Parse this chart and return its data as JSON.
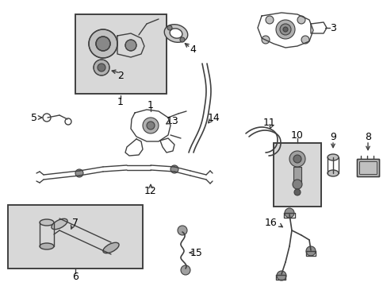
{
  "bg_color": "#ffffff",
  "line_color": "#404040",
  "box_fill": "#e8e8e8",
  "label_color": "#000000",
  "lw": 1.0,
  "figw": 4.89,
  "figh": 3.6,
  "dpi": 100
}
